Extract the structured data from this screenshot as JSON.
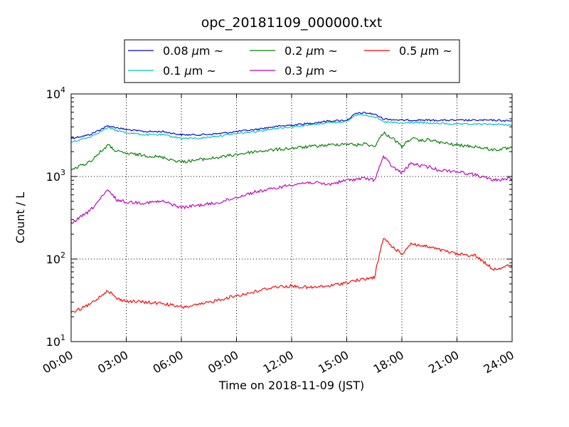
{
  "chart_data": {
    "type": "line",
    "title": "opc_20181109_000000.txt",
    "xlabel": "Time on 2018-11-09 (JST)",
    "ylabel": "Count / L",
    "yscale": "log",
    "ylim": [
      10,
      10000
    ],
    "xlim": [
      "00:00",
      "24:00"
    ],
    "grid": true,
    "legend_position": "top, above plot, 3 columns",
    "x_tick_labels": [
      "00:00",
      "03:00",
      "06:00",
      "09:00",
      "12:00",
      "15:00",
      "18:00",
      "21:00",
      "24:00"
    ],
    "y_tick_labels": [
      {
        "base": "10",
        "exp": "1",
        "value": 10
      },
      {
        "base": "10",
        "exp": "2",
        "value": 100
      },
      {
        "base": "10",
        "exp": "3",
        "value": 1000
      },
      {
        "base": "10",
        "exp": "4",
        "value": 10000
      }
    ],
    "x": [
      "00:00",
      "01:00",
      "02:00",
      "02:30",
      "03:00",
      "04:00",
      "05:00",
      "06:00",
      "07:00",
      "08:00",
      "09:00",
      "10:00",
      "11:00",
      "12:00",
      "13:00",
      "14:00",
      "15:00",
      "15:30",
      "16:00",
      "16:30",
      "17:00",
      "17:30",
      "18:00",
      "18:30",
      "19:00",
      "19:30",
      "20:00",
      "21:00",
      "22:00",
      "23:00",
      "24:00"
    ],
    "series": [
      {
        "name": "0.08",
        "unit": "μm",
        "suffix": "~",
        "color": "#0000cc",
        "values": [
          2900,
          3200,
          4100,
          3900,
          3700,
          3500,
          3500,
          3200,
          3200,
          3300,
          3500,
          3700,
          4000,
          4200,
          4400,
          4700,
          4800,
          5800,
          5900,
          5700,
          5000,
          4900,
          4800,
          4800,
          4850,
          4800,
          4800,
          4800,
          4800,
          4800,
          4700
        ]
      },
      {
        "name": "0.1",
        "unit": "μm",
        "suffix": "~",
        "color": "#00c0c0",
        "values": [
          2600,
          3000,
          3900,
          3600,
          3400,
          3200,
          3200,
          2900,
          2900,
          3100,
          3300,
          3500,
          3800,
          4000,
          4200,
          4500,
          4600,
          5600,
          5600,
          5300,
          4600,
          4500,
          4400,
          4500,
          4500,
          4400,
          4400,
          4300,
          4300,
          4300,
          4200
        ]
      },
      {
        "name": "0.2",
        "unit": "μm",
        "suffix": "~",
        "color": "#008000",
        "values": [
          1200,
          1500,
          2400,
          2000,
          1900,
          1800,
          1700,
          1500,
          1600,
          1700,
          1850,
          2000,
          2100,
          2200,
          2300,
          2400,
          2500,
          2400,
          2500,
          2300,
          3400,
          2900,
          2300,
          2900,
          2700,
          2800,
          2600,
          2400,
          2300,
          2100,
          2200
        ]
      },
      {
        "name": "0.3",
        "unit": "μm",
        "suffix": "~",
        "color": "#bf00bf",
        "values": [
          270,
          380,
          680,
          520,
          490,
          480,
          500,
          420,
          450,
          480,
          560,
          650,
          710,
          800,
          850,
          800,
          900,
          930,
          950,
          900,
          1750,
          1300,
          1100,
          1450,
          1350,
          1300,
          1200,
          1150,
          1050,
          900,
          950
        ]
      },
      {
        "name": "0.5",
        "unit": "μm",
        "suffix": "~",
        "color": "#ff0000",
        "values": [
          22,
          28,
          42,
          33,
          31,
          30,
          29,
          26,
          28,
          32,
          36,
          40,
          46,
          47,
          45,
          47,
          52,
          55,
          57,
          60,
          180,
          140,
          115,
          155,
          145,
          140,
          130,
          115,
          110,
          75,
          85
        ]
      }
    ]
  }
}
